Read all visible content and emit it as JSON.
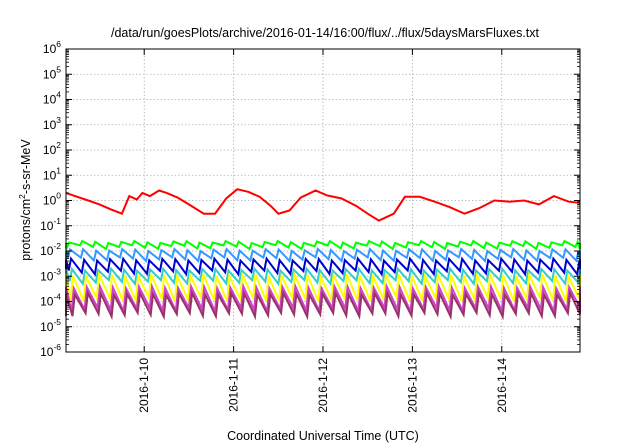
{
  "chart_data": {
    "type": "line",
    "title": "/data/run/goesPlots/archive/2016-01-14/16:00/flux/../flux/5daysMarsFluxes.txt",
    "xlabel": "Coordinated Universal Time (UTC)",
    "ylabel": {
      "pre": "protons/cm",
      "sup": "2",
      "post": "-s-sr-MeV"
    },
    "yscale": "log",
    "ylim_exp": [
      -6,
      6
    ],
    "y_tick_base": "10",
    "y_tick_exponents": [
      "-6",
      "-5",
      "-4",
      "-3",
      "-2",
      "-1",
      "0",
      "1",
      "2",
      "3",
      "4",
      "5",
      "6"
    ],
    "xlim": [
      "2016-01-09T03:00",
      "2016-01-14T21:00"
    ],
    "x_ticks": [
      {
        "t": "2016-01-10T00:00",
        "label": "2016-1-10"
      },
      {
        "t": "2016-01-11T00:00",
        "label": "2016-1-11"
      },
      {
        "t": "2016-01-12T00:00",
        "label": "2016-1-12"
      },
      {
        "t": "2016-01-13T00:00",
        "label": "2016-1-13"
      },
      {
        "t": "2016-01-14T00:00",
        "label": "2016-1-14"
      }
    ],
    "grid": true,
    "series": [
      {
        "color": "#ff0000",
        "t": [
          "2016-01-09T03:00",
          "2016-01-09T06:00",
          "2016-01-09T09:00",
          "2016-01-09T12:00",
          "2016-01-09T15:00",
          "2016-01-09T18:00",
          "2016-01-09T20:00",
          "2016-01-09T22:00",
          "2016-01-09T23:30",
          "2016-01-10T01:30",
          "2016-01-10T04:00",
          "2016-01-10T06:00",
          "2016-01-10T09:00",
          "2016-01-10T12:00",
          "2016-01-10T16:00",
          "2016-01-10T19:00",
          "2016-01-10T22:00",
          "2016-01-11T01:00",
          "2016-01-11T04:00",
          "2016-01-11T07:00",
          "2016-01-11T10:00",
          "2016-01-11T12:00",
          "2016-01-11T15:00",
          "2016-01-11T18:00",
          "2016-01-11T22:00",
          "2016-01-12T01:00",
          "2016-01-12T05:00",
          "2016-01-12T09:00",
          "2016-01-12T12:00",
          "2016-01-12T15:00",
          "2016-01-12T19:00",
          "2016-01-12T22:00",
          "2016-01-13T02:00",
          "2016-01-13T06:00",
          "2016-01-13T10:00",
          "2016-01-13T14:00",
          "2016-01-13T18:00",
          "2016-01-13T22:00",
          "2016-01-14T02:00",
          "2016-01-14T06:00",
          "2016-01-14T10:00",
          "2016-01-14T14:00",
          "2016-01-14T18:00",
          "2016-01-14T21:00"
        ],
        "values": [
          2.0,
          1.4,
          1.0,
          0.7,
          0.45,
          0.3,
          1.5,
          1.1,
          2.0,
          1.5,
          2.5,
          2.0,
          1.3,
          0.7,
          0.3,
          0.3,
          1.2,
          2.8,
          2.2,
          1.4,
          0.6,
          0.3,
          0.4,
          1.3,
          2.5,
          1.6,
          1.2,
          0.6,
          0.3,
          0.16,
          0.3,
          1.4,
          1.4,
          0.9,
          0.55,
          0.3,
          0.5,
          1.0,
          0.9,
          1.0,
          0.7,
          1.5,
          0.9,
          0.8
        ]
      },
      {
        "color": "#00ff00",
        "hi": 0.025,
        "lo": 0.012
      },
      {
        "color": "#3399ff",
        "hi": 0.012,
        "lo": 0.004
      },
      {
        "color": "#0000cc",
        "hi": 0.005,
        "lo": 0.0012
      },
      {
        "color": "#33cccc",
        "hi": 0.002,
        "lo": 0.0005
      },
      {
        "color": "#ffff00",
        "hi": 0.0012,
        "lo": 0.0001
      },
      {
        "color": "#cc44cc",
        "hi": 0.0004,
        "lo": 4e-05
      },
      {
        "color": "#993366",
        "hi": 0.00022,
        "lo": 2.5e-05
      }
    ]
  }
}
